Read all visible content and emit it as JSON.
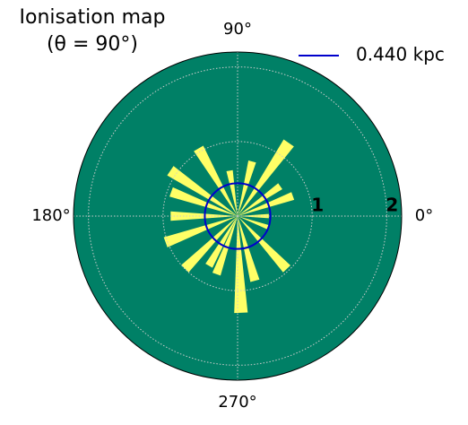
{
  "chart_data": {
    "type": "polar",
    "title": "Ionisation map",
    "subtitle": "(θ = 90°)",
    "background_color": "#008066",
    "rlim": [
      0,
      2.2
    ],
    "rticks": [
      1,
      2
    ],
    "thetaticks": [
      {
        "value": 0,
        "label": "0°"
      },
      {
        "value": 90,
        "label": "90°"
      },
      {
        "value": 180,
        "label": "180°"
      },
      {
        "value": 270,
        "label": "270°"
      }
    ],
    "grid": true,
    "series": [
      {
        "color": "#ffff66",
        "theta": [
          0,
          20,
          35,
          55,
          75,
          100,
          120,
          146,
          160,
          180,
          200,
          225,
          240,
          250,
          272,
          285,
          313,
          340
        ],
        "values": [
          0.42,
          0.79,
          0.7,
          1.2,
          0.76,
          0.62,
          1.05,
          1.09,
          0.95,
          0.9,
          1.03,
          1.0,
          0.77,
          0.83,
          1.3,
          0.9,
          0.97,
          0.45
        ]
      },
      {
        "name": "0.440 kpc",
        "color": "#0000cc",
        "radius": 0.44
      }
    ],
    "legend": "upper right"
  }
}
